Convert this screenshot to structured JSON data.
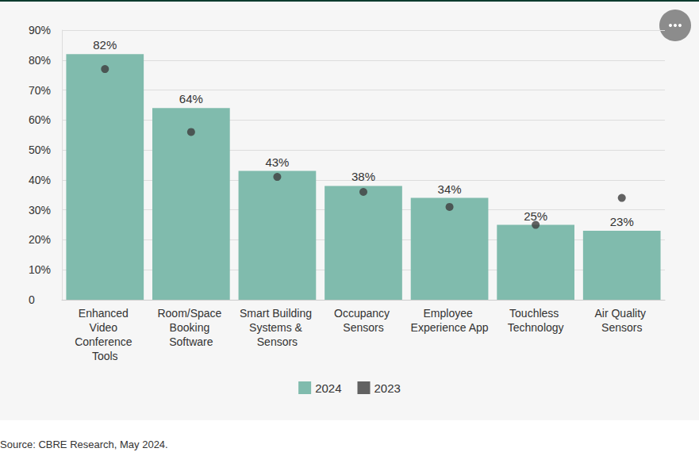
{
  "chart_data": {
    "type": "bar",
    "categories": [
      "Enhanced Video Conference Tools",
      "Room/Space Booking Software",
      "Smart Building Systems & Sensors",
      "Occupancy Sensors",
      "Employee Experience App",
      "Touchless Technology",
      "Air Quality Sensors"
    ],
    "series": [
      {
        "name": "2024",
        "type": "bar",
        "color": "#80bbad",
        "values": [
          82,
          64,
          43,
          38,
          34,
          25,
          23
        ],
        "value_labels": [
          "82%",
          "64%",
          "43%",
          "38%",
          "34%",
          "25%",
          "23%"
        ]
      },
      {
        "name": "2023",
        "type": "scatter",
        "color": "#3d3d3d",
        "marker": "circle",
        "values": [
          77,
          56,
          41,
          36,
          31,
          25,
          34
        ]
      }
    ],
    "ylim": [
      0,
      90
    ],
    "yticks": [
      0,
      {
        "value": 10,
        "label": "10%"
      },
      {
        "value": 20,
        "label": "20%"
      },
      {
        "value": 30,
        "label": "30%"
      },
      {
        "value": 40,
        "label": "40%"
      },
      {
        "value": 50,
        "label": "50%"
      },
      {
        "value": 60,
        "label": "60%"
      },
      {
        "value": 70,
        "label": "70%"
      },
      {
        "value": 80,
        "label": "80%"
      },
      {
        "value": 90,
        "label": "90%"
      }
    ],
    "grid": true,
    "data_labels": true,
    "legend": "bottom",
    "source": "Source: CBRE Research, May 2024."
  }
}
